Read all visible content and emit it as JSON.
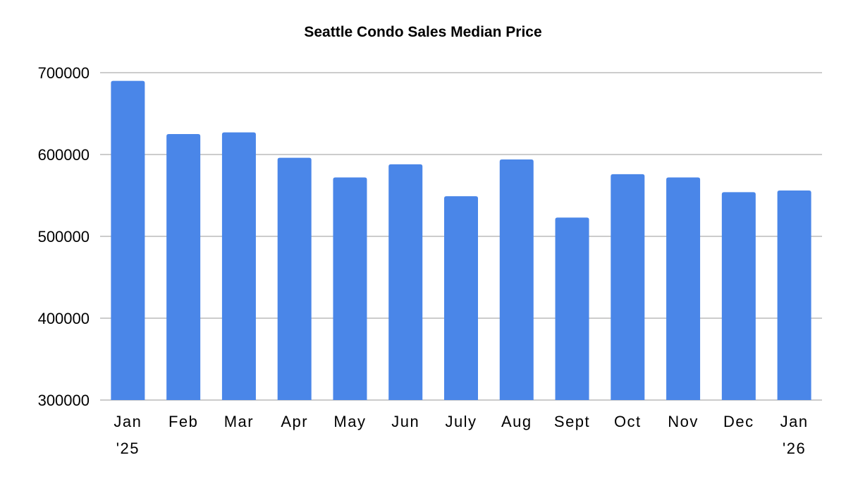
{
  "chart_data": {
    "type": "bar",
    "title": "Seattle Condo Sales Median Price",
    "xlabel": "",
    "ylabel": "",
    "categories": [
      [
        "Jan",
        "'25"
      ],
      [
        "Feb"
      ],
      [
        "Mar"
      ],
      [
        "Apr"
      ],
      [
        "May"
      ],
      [
        "Jun"
      ],
      [
        "July"
      ],
      [
        "Aug"
      ],
      [
        "Sept"
      ],
      [
        "Oct"
      ],
      [
        "Nov"
      ],
      [
        "Dec"
      ],
      [
        "Jan",
        "'26"
      ]
    ],
    "values": [
      690000,
      625000,
      627000,
      596000,
      572000,
      588000,
      549000,
      594000,
      523000,
      576000,
      572000,
      554000,
      556000
    ],
    "ylim": [
      300000,
      700000
    ],
    "yticks": [
      300000,
      400000,
      500000,
      600000,
      700000
    ],
    "grid": true,
    "legend": "none",
    "bar_color": "#4a86e8",
    "grid_color": "#cccccc"
  }
}
